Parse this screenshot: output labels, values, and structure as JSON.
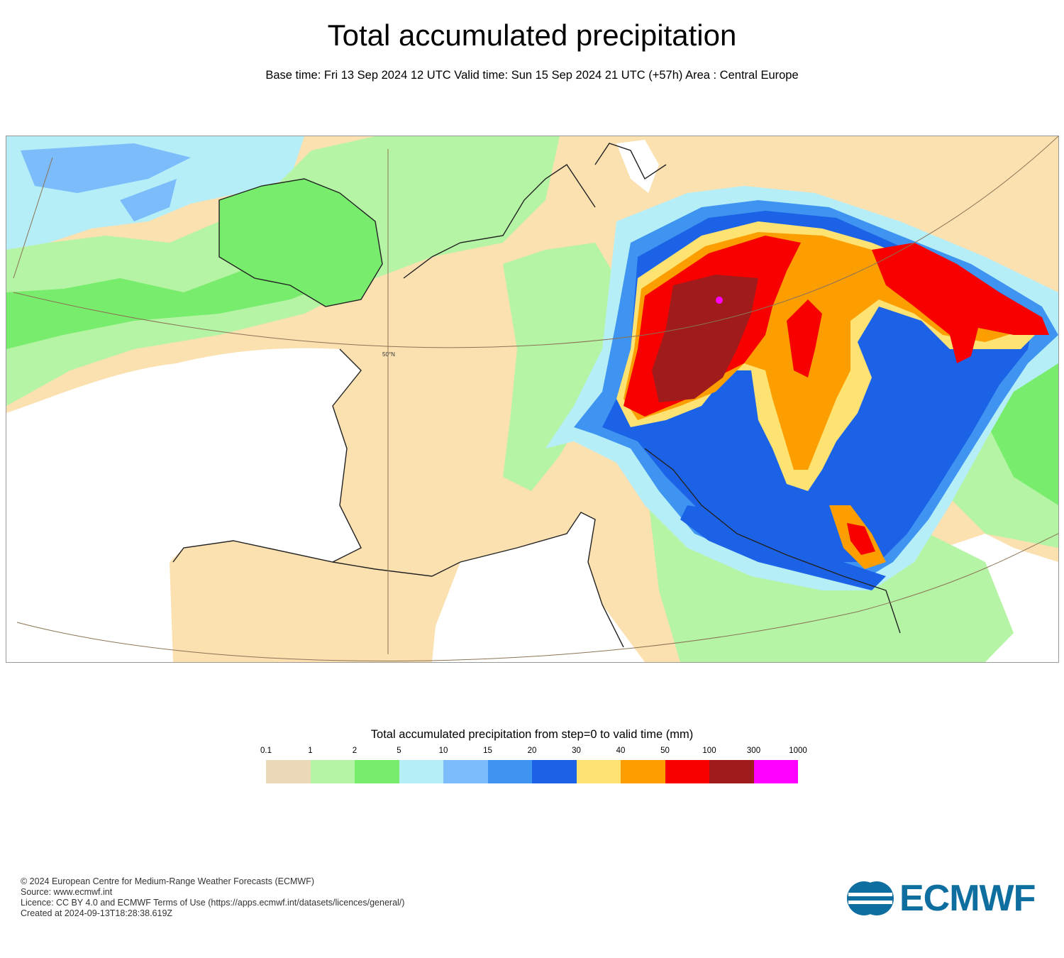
{
  "title": "Total accumulated precipitation",
  "subtitle": "Base time: Fri 13 Sep 2024 12 UTC Valid time: Sun 15 Sep 2024 21 UTC (+57h) Area : Central Europe",
  "map": {
    "area": "Central Europe",
    "lat_label": "50°N",
    "colors": {
      "land_dry": "#ffffff",
      "sea": "#ffffff",
      "coastline": "#222222",
      "graticule": "#8b7355"
    }
  },
  "legend": {
    "title": "Total accumulated precipitation from step=0 to valid time (mm)",
    "ticks": [
      "0.1",
      "1",
      "2",
      "5",
      "10",
      "15",
      "20",
      "30",
      "40",
      "50",
      "100",
      "300",
      "1000"
    ],
    "colors": [
      "#ead8b8",
      "#b4f4a4",
      "#78ec6c",
      "#b6eef8",
      "#7cbcfa",
      "#3e94f0",
      "#1c62e6",
      "#fee272",
      "#fd9e00",
      "#f80000",
      "#a01c1c",
      "#fe00fe"
    ]
  },
  "footer": {
    "line1": "© 2024 European Centre for Medium-Range Weather Forecasts (ECMWF)",
    "line2": "Source: www.ecmwf.int",
    "line3": "Licence: CC BY 4.0 and ECMWF Terms of Use (https://apps.ecmwf.int/datasets/licences/general/)",
    "line4": "Created at 2024-09-13T18:28:38.619Z"
  },
  "logo": {
    "text": "ECMWF",
    "color": "#0e6ea0"
  }
}
